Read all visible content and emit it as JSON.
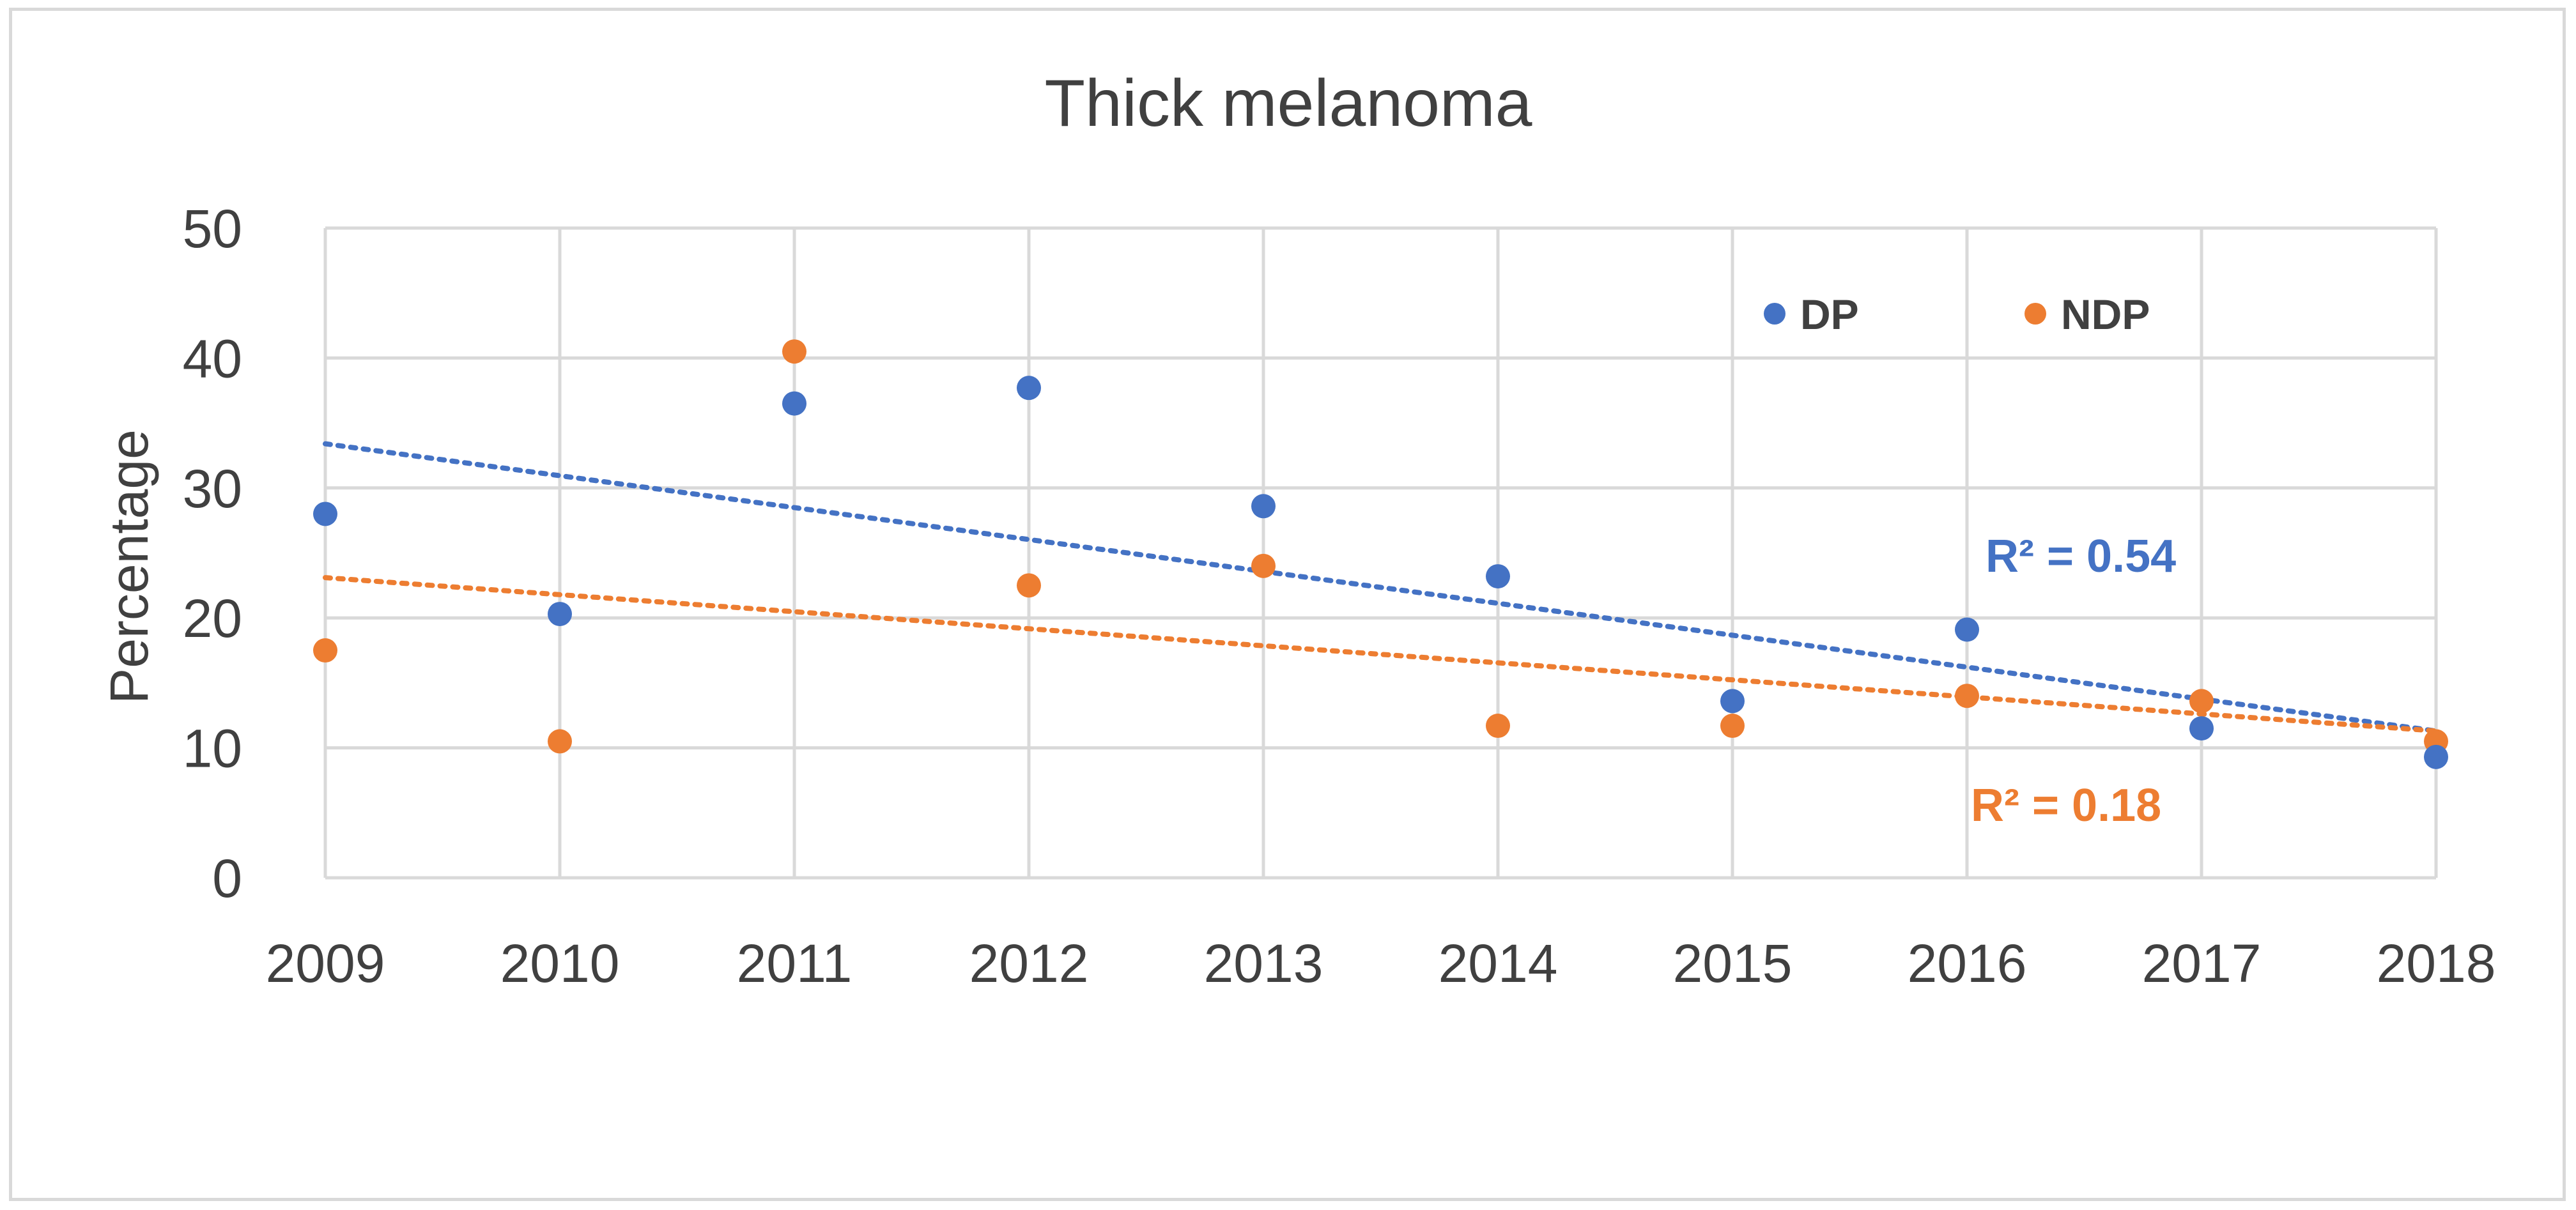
{
  "chart_data": {
    "type": "scatter",
    "title": "Thick melanoma",
    "xlabel": "",
    "ylabel": "Percentage",
    "x": [
      2009,
      2010,
      2011,
      2012,
      2013,
      2014,
      2015,
      2016,
      2017,
      2018
    ],
    "x_tick_labels": [
      "2009",
      "2010",
      "2011",
      "2012",
      "2013",
      "2014",
      "2015",
      "2016",
      "2017",
      "2018"
    ],
    "y_tick_labels": [
      "0",
      "10",
      "20",
      "30",
      "40",
      "50"
    ],
    "xlim": [
      2009,
      2018
    ],
    "ylim": [
      0,
      50
    ],
    "grid": true,
    "legend_position": "top-right",
    "series": [
      {
        "name": "DP",
        "color": "#4472c4",
        "values": [
          28,
          20.3,
          36.5,
          37.7,
          28.6,
          23.2,
          13.6,
          19.1,
          11.5,
          9.3
        ],
        "trendline": {
          "type": "linear",
          "start": 33.4,
          "end": 11.3,
          "r2_label": "R² = 0.54"
        }
      },
      {
        "name": "NDP",
        "color": "#ed7d31",
        "values": [
          17.5,
          10.5,
          40.5,
          22.5,
          24,
          11.7,
          11.7,
          14,
          13.6,
          10.5
        ],
        "trendline": {
          "type": "linear",
          "start": 23.1,
          "end": 11.3,
          "r2_label": "R² = 0.18"
        }
      }
    ]
  }
}
